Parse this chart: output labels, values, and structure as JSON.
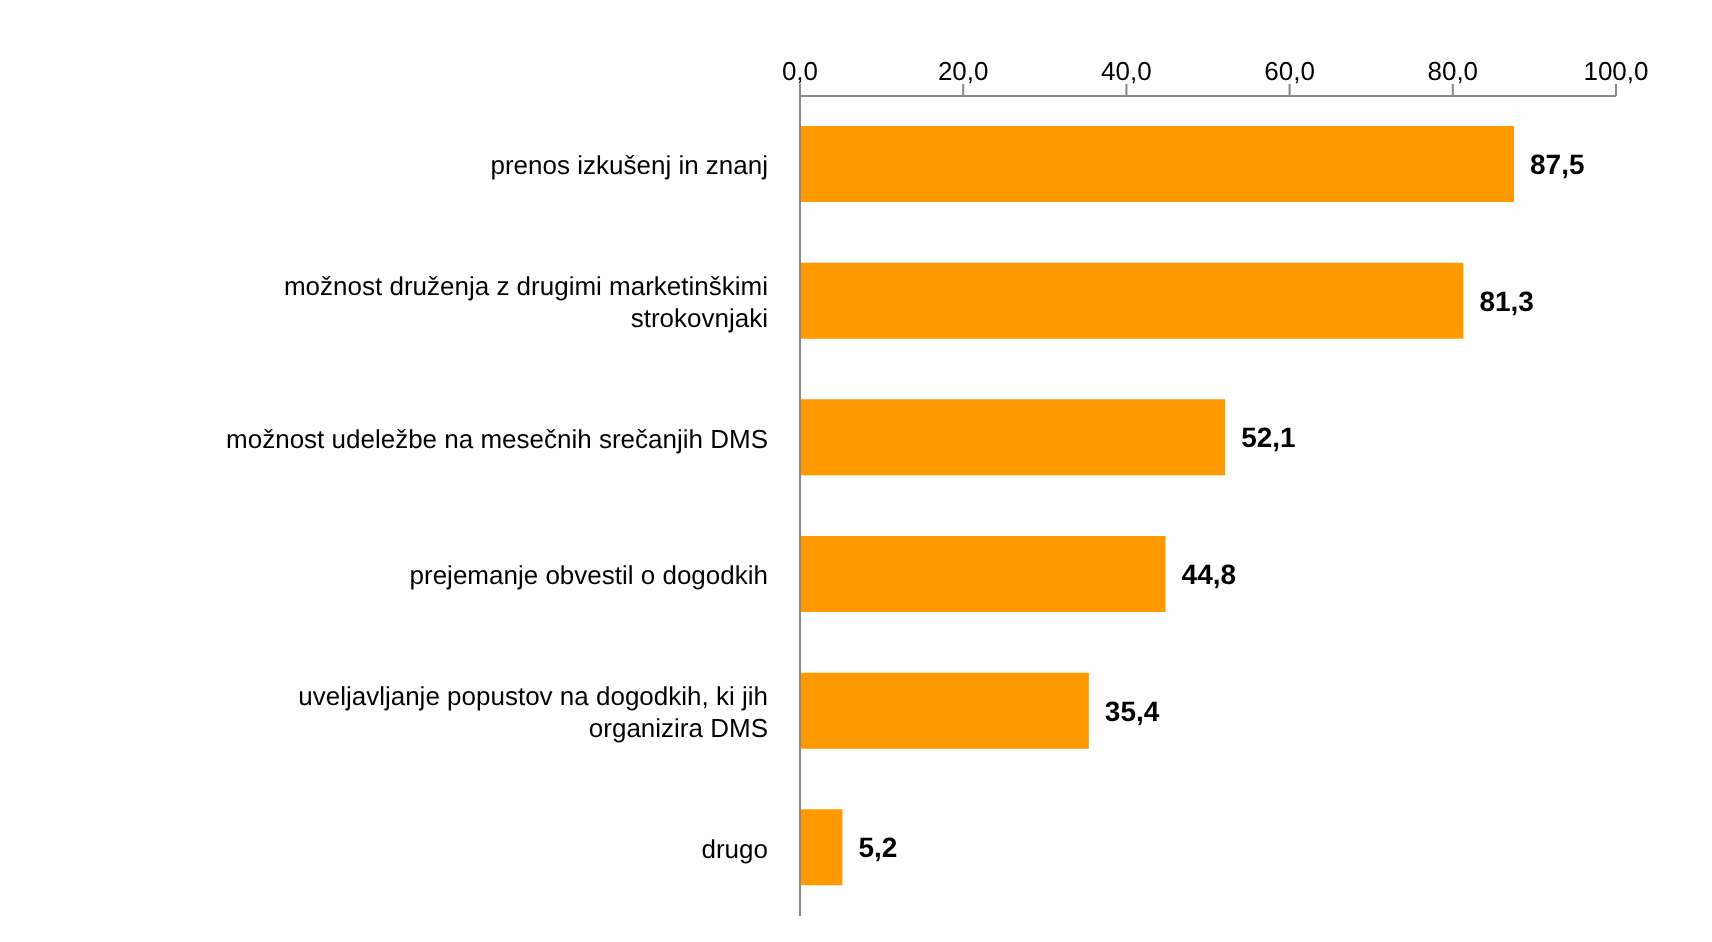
{
  "chart_data": {
    "type": "bar",
    "orientation": "horizontal",
    "categories": [
      "prenos izkušenj in znanj",
      "možnost druženja z drugimi marketinškimi strokovnjaki",
      "možnost udeležbe na mesečnih srečanjih DMS",
      "prejemanje obvestil o dogodkih",
      "uveljavljanje popustov na dogodkih, ki jih organizira DMS",
      "drugo"
    ],
    "values": [
      87.5,
      81.3,
      52.1,
      44.8,
      35.4,
      5.2
    ],
    "value_labels": [
      "87,5",
      "81,3",
      "52,1",
      "44,8",
      "35,4",
      "5,2"
    ],
    "color": "#ff9900",
    "xlim": [
      0,
      100
    ],
    "xticks": [
      {
        "value": 0,
        "label": "0,0"
      },
      {
        "value": 20,
        "label": "20,0"
      },
      {
        "value": 40,
        "label": "40,0"
      },
      {
        "value": 60,
        "label": "60,0"
      },
      {
        "value": 80,
        "label": "80,0"
      },
      {
        "value": 100,
        "label": "100,0"
      }
    ],
    "grid": false,
    "legend": false
  }
}
